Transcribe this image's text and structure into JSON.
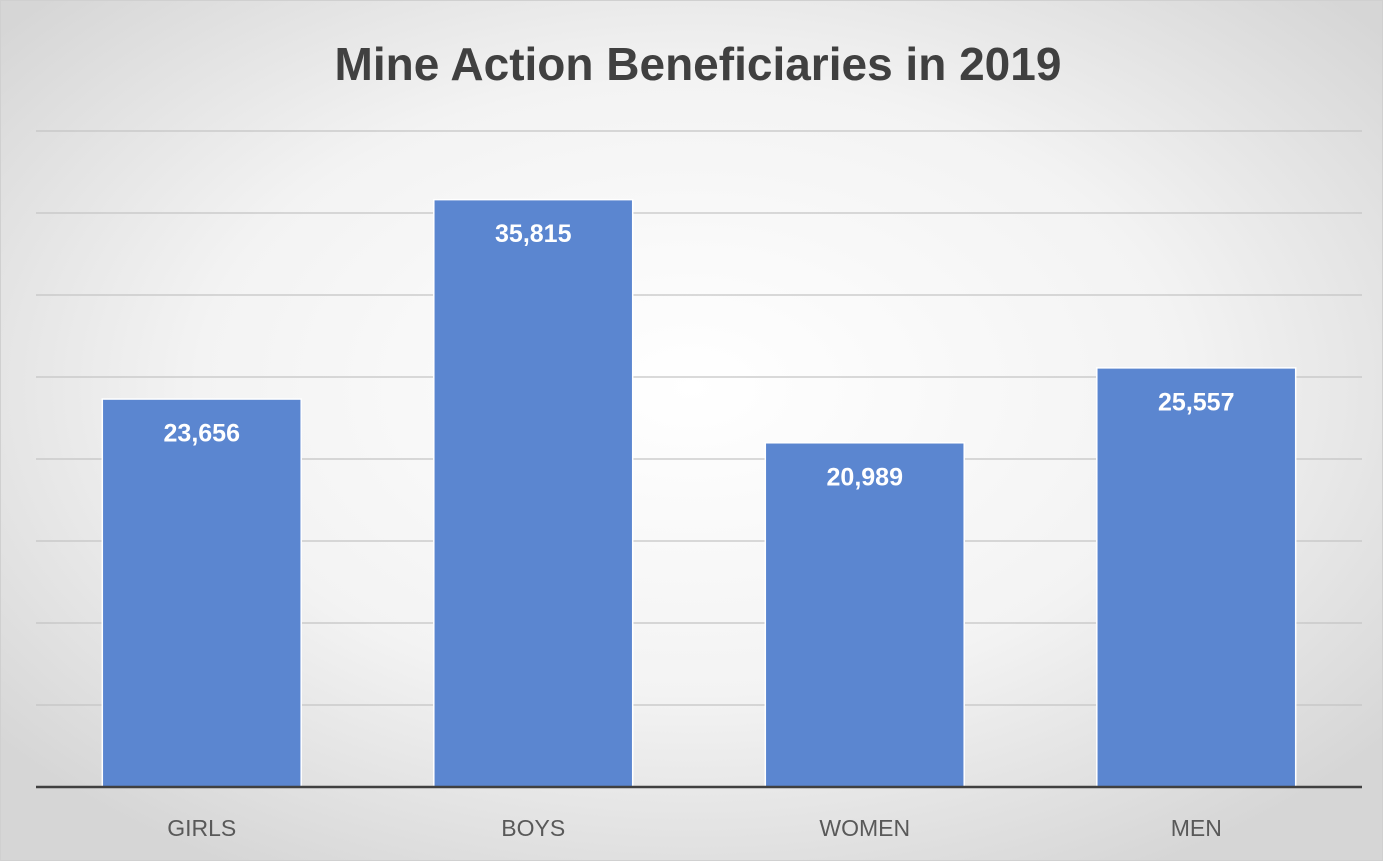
{
  "chart_data": {
    "type": "bar",
    "title": "Mine Action Beneficiaries in 2019",
    "categories": [
      "GIRLS",
      "BOYS",
      "WOMEN",
      "MEN"
    ],
    "values": [
      23656,
      35815,
      20989,
      25557
    ],
    "value_labels": [
      "23,656",
      "35,815",
      "20,989",
      "25,557"
    ],
    "color": "#5b86d0",
    "ylim": [
      0,
      40000
    ],
    "yticks": [
      0,
      5000,
      10000,
      15000,
      20000,
      25000,
      30000,
      35000,
      40000
    ],
    "grid": true
  }
}
